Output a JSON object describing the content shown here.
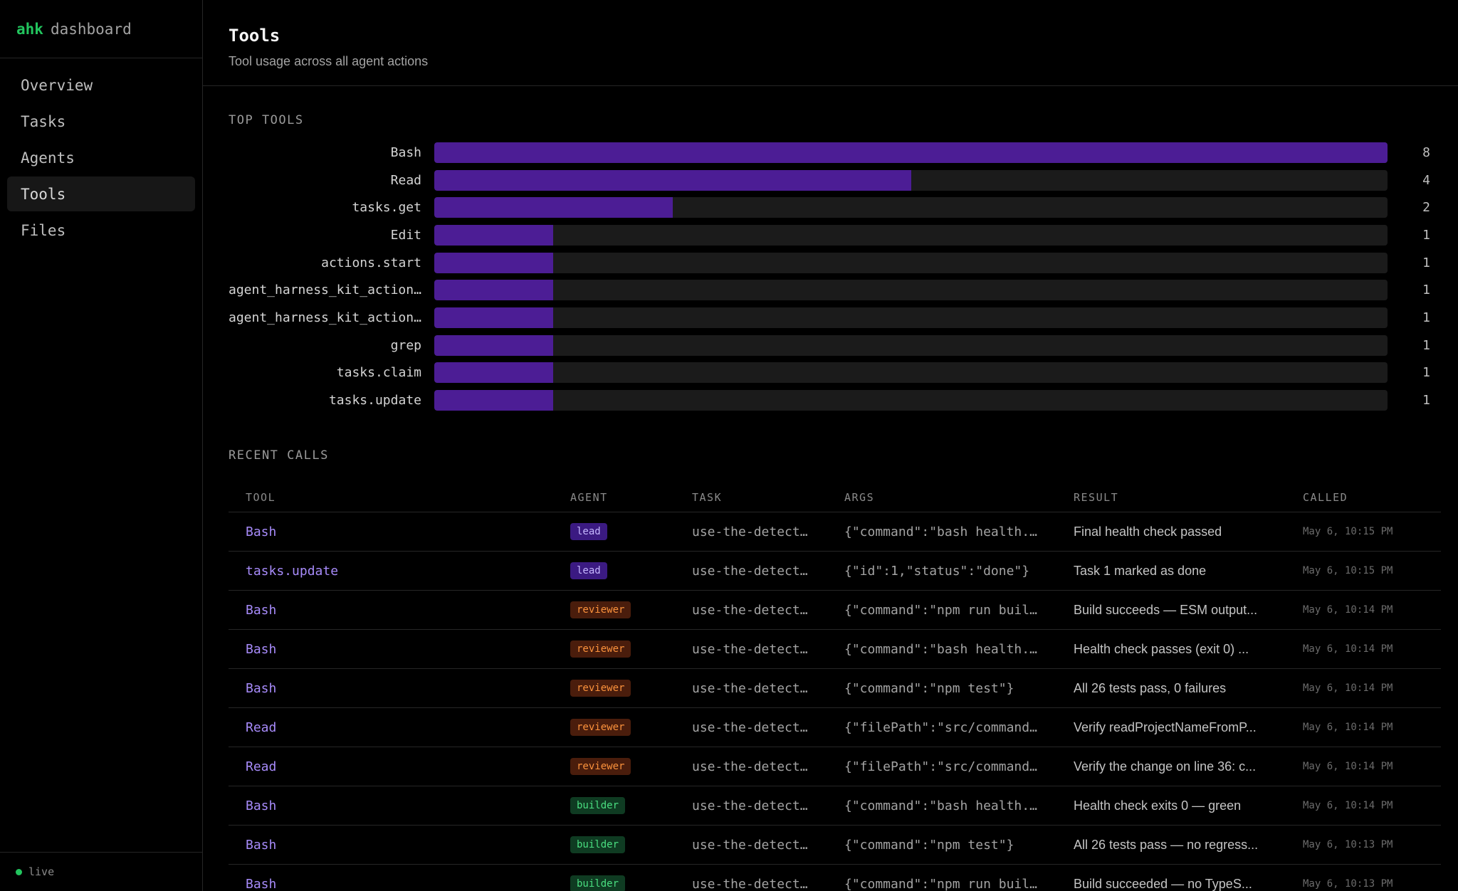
{
  "brand": {
    "accent": "ahk",
    "rest": "dashboard"
  },
  "nav": [
    {
      "label": "Overview",
      "id": "overview",
      "active": false
    },
    {
      "label": "Tasks",
      "id": "tasks",
      "active": false
    },
    {
      "label": "Agents",
      "id": "agents",
      "active": false
    },
    {
      "label": "Tools",
      "id": "tools",
      "active": true
    },
    {
      "label": "Files",
      "id": "files",
      "active": false
    }
  ],
  "status": {
    "label": "live",
    "color": "#22c55e"
  },
  "header": {
    "title": "Tools",
    "subtitle": "Tool usage across all agent actions"
  },
  "top_tools": {
    "title": "TOP TOOLS",
    "max": 8,
    "items": [
      {
        "name": "Bash",
        "count": 8
      },
      {
        "name": "Read",
        "count": 4
      },
      {
        "name": "tasks.get",
        "count": 2
      },
      {
        "name": "Edit",
        "count": 1
      },
      {
        "name": "actions.start",
        "count": 1
      },
      {
        "name": "agent_harness_kit_actions…",
        "count": 1
      },
      {
        "name": "agent_harness_kit_actions…",
        "count": 1
      },
      {
        "name": "grep",
        "count": 1
      },
      {
        "name": "tasks.claim",
        "count": 1
      },
      {
        "name": "tasks.update",
        "count": 1
      }
    ]
  },
  "recent_calls": {
    "title": "RECENT CALLS",
    "columns": [
      "TOOL",
      "AGENT",
      "TASK",
      "ARGS",
      "RESULT",
      "CALLED"
    ],
    "rows": [
      {
        "tool": "Bash",
        "agent": "lead",
        "task": "use-the-detect…",
        "args": "{\"command\":\"bash health.…",
        "result": "Final health check passed",
        "called": "May 6, 10:15 PM"
      },
      {
        "tool": "tasks.update",
        "agent": "lead",
        "task": "use-the-detect…",
        "args": "{\"id\":1,\"status\":\"done\"}",
        "result": "Task 1 marked as done",
        "called": "May 6, 10:15 PM"
      },
      {
        "tool": "Bash",
        "agent": "reviewer",
        "task": "use-the-detect…",
        "args": "{\"command\":\"npm run buil…",
        "result": "Build succeeds — ESM output...",
        "called": "May 6, 10:14 PM"
      },
      {
        "tool": "Bash",
        "agent": "reviewer",
        "task": "use-the-detect…",
        "args": "{\"command\":\"bash health.…",
        "result": "Health check passes (exit 0) ...",
        "called": "May 6, 10:14 PM"
      },
      {
        "tool": "Bash",
        "agent": "reviewer",
        "task": "use-the-detect…",
        "args": "{\"command\":\"npm test\"}",
        "result": "All 26 tests pass, 0 failures",
        "called": "May 6, 10:14 PM"
      },
      {
        "tool": "Read",
        "agent": "reviewer",
        "task": "use-the-detect…",
        "args": "{\"filePath\":\"src/command…",
        "result": "Verify readProjectNameFromP...",
        "called": "May 6, 10:14 PM"
      },
      {
        "tool": "Read",
        "agent": "reviewer",
        "task": "use-the-detect…",
        "args": "{\"filePath\":\"src/command…",
        "result": "Verify the change on line 36: c...",
        "called": "May 6, 10:14 PM"
      },
      {
        "tool": "Bash",
        "agent": "builder",
        "task": "use-the-detect…",
        "args": "{\"command\":\"bash health.…",
        "result": "Health check exits 0 — green",
        "called": "May 6, 10:14 PM"
      },
      {
        "tool": "Bash",
        "agent": "builder",
        "task": "use-the-detect…",
        "args": "{\"command\":\"npm test\"}",
        "result": "All 26 tests pass — no regress...",
        "called": "May 6, 10:13 PM"
      },
      {
        "tool": "Bash",
        "agent": "builder",
        "task": "use-the-detect…",
        "args": "{\"command\":\"npm run buil…",
        "result": "Build succeeded — no TypeS...",
        "called": "May 6, 10:13 PM"
      }
    ]
  },
  "colors": {
    "bar_fill": "#4c1d95",
    "bar_track": "#1b1b1b",
    "tool_link": "#a78bfa",
    "lead": "#3b1a82",
    "reviewer": "#4a1d0c",
    "builder": "#0f3b22"
  }
}
